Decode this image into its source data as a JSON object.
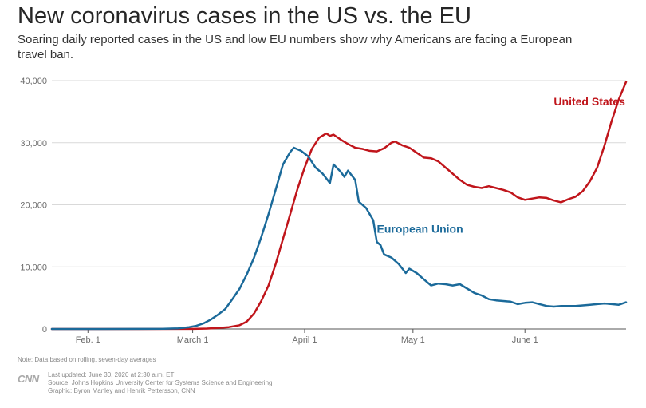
{
  "title": "New coronavirus cases in the US vs. the EU",
  "subtitle": "Soaring daily reported cases in the US and low EU numbers show why Americans are facing a European travel ban.",
  "note": "Note: Data based on rolling, seven-day averages",
  "footer": {
    "logo": "CNN",
    "updated": "Last updated: June 30, 2020 at 2:30 a.m. ET",
    "source": "Source: Johns Hopkins University Center for Systems Science and Engineering",
    "graphic": "Graphic: Byron Manley and Henrik Pettersson, CNN"
  },
  "chart_data": {
    "type": "line",
    "title": "New coronavirus cases in the US vs. the EU",
    "xlabel": "",
    "ylabel": "",
    "ylim": [
      0,
      40000
    ],
    "xlim": [
      "2020-01-22",
      "2020-06-29"
    ],
    "grid": true,
    "y_ticks": [
      {
        "value": 0,
        "label": "0"
      },
      {
        "value": 10000,
        "label": "10,000"
      },
      {
        "value": 20000,
        "label": "20,000"
      },
      {
        "value": 30000,
        "label": "30,000"
      },
      {
        "value": 40000,
        "label": "40,000"
      }
    ],
    "x_ticks": [
      {
        "date": "2020-02-01",
        "label": "Feb. 1"
      },
      {
        "date": "2020-03-01",
        "label": "March 1"
      },
      {
        "date": "2020-04-01",
        "label": "April 1"
      },
      {
        "date": "2020-05-01",
        "label": "May 1"
      },
      {
        "date": "2020-06-01",
        "label": "June 1"
      }
    ],
    "series": [
      {
        "name": "United States",
        "color": "#c0151b",
        "label_date": "2020-06-09",
        "label_value": 36000,
        "points": [
          [
            "2020-01-22",
            0
          ],
          [
            "2020-02-15",
            0
          ],
          [
            "2020-03-01",
            10
          ],
          [
            "2020-03-05",
            60
          ],
          [
            "2020-03-08",
            150
          ],
          [
            "2020-03-11",
            300
          ],
          [
            "2020-03-14",
            600
          ],
          [
            "2020-03-16",
            1200
          ],
          [
            "2020-03-18",
            2500
          ],
          [
            "2020-03-20",
            4500
          ],
          [
            "2020-03-22",
            7000
          ],
          [
            "2020-03-24",
            10500
          ],
          [
            "2020-03-26",
            14500
          ],
          [
            "2020-03-28",
            18500
          ],
          [
            "2020-03-30",
            22500
          ],
          [
            "2020-04-01",
            26000
          ],
          [
            "2020-04-03",
            29000
          ],
          [
            "2020-04-05",
            30800
          ],
          [
            "2020-04-07",
            31500
          ],
          [
            "2020-04-08",
            31100
          ],
          [
            "2020-04-09",
            31300
          ],
          [
            "2020-04-11",
            30500
          ],
          [
            "2020-04-13",
            29800
          ],
          [
            "2020-04-15",
            29200
          ],
          [
            "2020-04-17",
            29000
          ],
          [
            "2020-04-19",
            28700
          ],
          [
            "2020-04-21",
            28600
          ],
          [
            "2020-04-23",
            29100
          ],
          [
            "2020-04-25",
            30000
          ],
          [
            "2020-04-26",
            30200
          ],
          [
            "2020-04-28",
            29600
          ],
          [
            "2020-04-30",
            29200
          ],
          [
            "2020-05-02",
            28400
          ],
          [
            "2020-05-04",
            27600
          ],
          [
            "2020-05-06",
            27500
          ],
          [
            "2020-05-08",
            27000
          ],
          [
            "2020-05-10",
            26000
          ],
          [
            "2020-05-12",
            25000
          ],
          [
            "2020-05-14",
            24000
          ],
          [
            "2020-05-16",
            23200
          ],
          [
            "2020-05-18",
            22900
          ],
          [
            "2020-05-20",
            22700
          ],
          [
            "2020-05-22",
            23000
          ],
          [
            "2020-05-24",
            22700
          ],
          [
            "2020-05-26",
            22400
          ],
          [
            "2020-05-28",
            22000
          ],
          [
            "2020-05-30",
            21200
          ],
          [
            "2020-06-01",
            20800
          ],
          [
            "2020-06-03",
            21000
          ],
          [
            "2020-06-05",
            21200
          ],
          [
            "2020-06-07",
            21100
          ],
          [
            "2020-06-09",
            20700
          ],
          [
            "2020-06-11",
            20400
          ],
          [
            "2020-06-13",
            20900
          ],
          [
            "2020-06-15",
            21300
          ],
          [
            "2020-06-17",
            22200
          ],
          [
            "2020-06-19",
            23800
          ],
          [
            "2020-06-21",
            26000
          ],
          [
            "2020-06-23",
            29500
          ],
          [
            "2020-06-25",
            33500
          ],
          [
            "2020-06-27",
            37000
          ],
          [
            "2020-06-29",
            39800
          ]
        ]
      },
      {
        "name": "European Union",
        "color": "#1b6a9a",
        "label_date": "2020-04-21",
        "label_value": 15500,
        "points": [
          [
            "2020-01-22",
            0
          ],
          [
            "2020-02-15",
            10
          ],
          [
            "2020-02-22",
            30
          ],
          [
            "2020-02-26",
            100
          ],
          [
            "2020-02-29",
            300
          ],
          [
            "2020-03-02",
            500
          ],
          [
            "2020-03-04",
            900
          ],
          [
            "2020-03-06",
            1500
          ],
          [
            "2020-03-08",
            2300
          ],
          [
            "2020-03-10",
            3200
          ],
          [
            "2020-03-12",
            4800
          ],
          [
            "2020-03-14",
            6500
          ],
          [
            "2020-03-16",
            8800
          ],
          [
            "2020-03-18",
            11500
          ],
          [
            "2020-03-20",
            14800
          ],
          [
            "2020-03-22",
            18500
          ],
          [
            "2020-03-24",
            22500
          ],
          [
            "2020-03-26",
            26500
          ],
          [
            "2020-03-28",
            28500
          ],
          [
            "2020-03-29",
            29200
          ],
          [
            "2020-03-31",
            28700
          ],
          [
            "2020-04-02",
            27800
          ],
          [
            "2020-04-04",
            26000
          ],
          [
            "2020-04-06",
            25000
          ],
          [
            "2020-04-08",
            23500
          ],
          [
            "2020-04-09",
            26500
          ],
          [
            "2020-04-11",
            25300
          ],
          [
            "2020-04-12",
            24500
          ],
          [
            "2020-04-13",
            25500
          ],
          [
            "2020-04-15",
            24000
          ],
          [
            "2020-04-16",
            20500
          ],
          [
            "2020-04-18",
            19500
          ],
          [
            "2020-04-20",
            17500
          ],
          [
            "2020-04-21",
            14000
          ],
          [
            "2020-04-22",
            13500
          ],
          [
            "2020-04-23",
            12000
          ],
          [
            "2020-04-25",
            11500
          ],
          [
            "2020-04-27",
            10500
          ],
          [
            "2020-04-29",
            9000
          ],
          [
            "2020-04-30",
            9700
          ],
          [
            "2020-05-02",
            9000
          ],
          [
            "2020-05-04",
            8000
          ],
          [
            "2020-05-06",
            7000
          ],
          [
            "2020-05-08",
            7300
          ],
          [
            "2020-05-10",
            7200
          ],
          [
            "2020-05-12",
            7000
          ],
          [
            "2020-05-14",
            7200
          ],
          [
            "2020-05-16",
            6500
          ],
          [
            "2020-05-18",
            5800
          ],
          [
            "2020-05-20",
            5400
          ],
          [
            "2020-05-22",
            4800
          ],
          [
            "2020-05-24",
            4600
          ],
          [
            "2020-05-26",
            4500
          ],
          [
            "2020-05-28",
            4400
          ],
          [
            "2020-05-30",
            4000
          ],
          [
            "2020-06-01",
            4200
          ],
          [
            "2020-06-03",
            4300
          ],
          [
            "2020-06-05",
            4000
          ],
          [
            "2020-06-07",
            3700
          ],
          [
            "2020-06-09",
            3600
          ],
          [
            "2020-06-11",
            3700
          ],
          [
            "2020-06-13",
            3700
          ],
          [
            "2020-06-15",
            3700
          ],
          [
            "2020-06-17",
            3800
          ],
          [
            "2020-06-19",
            3900
          ],
          [
            "2020-06-21",
            4000
          ],
          [
            "2020-06-23",
            4100
          ],
          [
            "2020-06-25",
            4000
          ],
          [
            "2020-06-27",
            3900
          ],
          [
            "2020-06-29",
            4300
          ]
        ]
      }
    ]
  }
}
